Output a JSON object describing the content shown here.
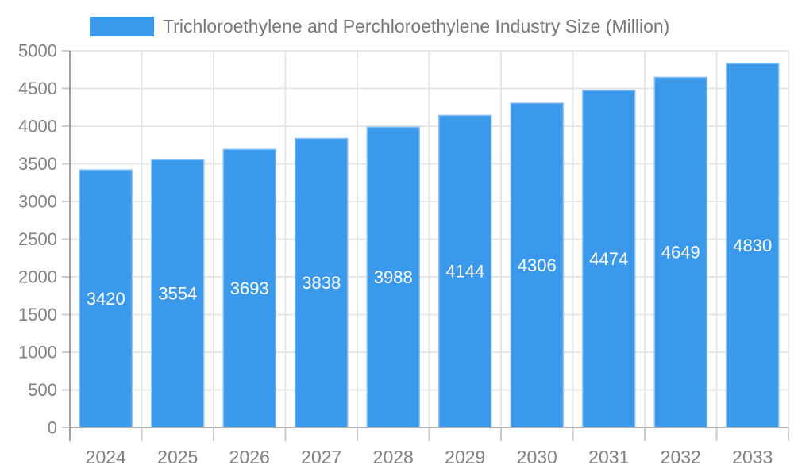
{
  "legend": {
    "label": "Trichloroethylene and Perchloroethylene Industry Size (Million)"
  },
  "chart_data": {
    "type": "bar",
    "title": "Trichloroethylene and Perchloroethylene Industry Size (Million)",
    "categories": [
      "2024",
      "2025",
      "2026",
      "2027",
      "2028",
      "2029",
      "2030",
      "2031",
      "2032",
      "2033"
    ],
    "values": [
      3420,
      3554,
      3693,
      3838,
      3988,
      4144,
      4306,
      4474,
      4649,
      4830
    ],
    "xlabel": "",
    "ylabel": "",
    "ylim": [
      0,
      5000
    ],
    "ytick_step": 500,
    "grid": true,
    "legend_position": "top-left",
    "bar_label_position": "inside-center",
    "colors": {
      "bar_fill": "#3B99EC",
      "bar_stroke": "#8FC2F2",
      "bar_label_text": "#FFFFFF",
      "axis_text": "#808080",
      "title_text": "#777777",
      "gridline": "#E6E6E6",
      "y_axis_line": "#9E9E9E",
      "x_axis_line": "#B3B3B3",
      "tick": "#C9C9C9"
    }
  }
}
